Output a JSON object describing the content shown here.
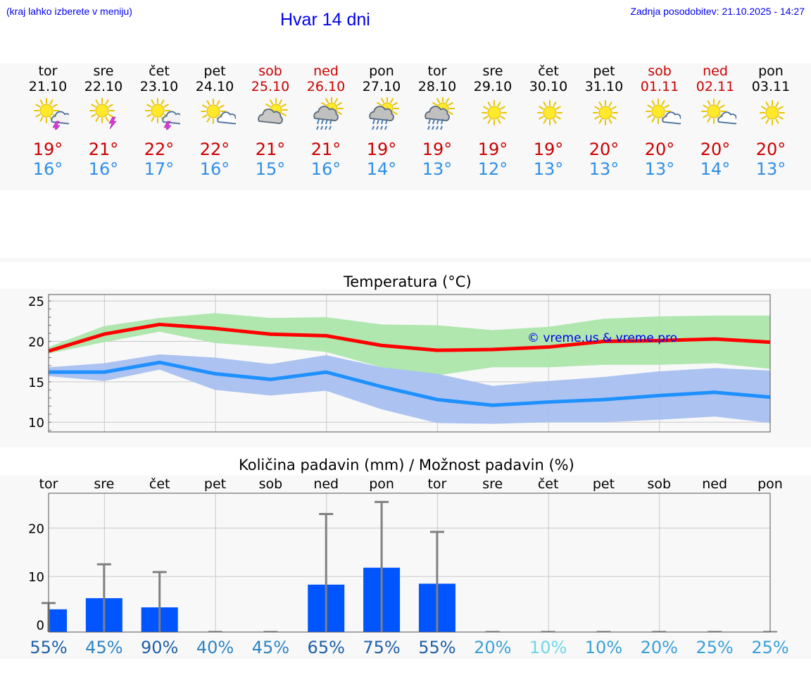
{
  "header": {
    "left_note": "(kraj lahko izberete v meniju)",
    "title": "Hvar 14 dni",
    "updated": "Zadnja posodobitev: 21.10.2025 - 14:27"
  },
  "days": [
    {
      "name": "tor",
      "date": "21.10",
      "weekend": false,
      "icon": "sun-cloud-thunder-icon",
      "tmax": "19°",
      "tmin": "16°"
    },
    {
      "name": "sre",
      "date": "22.10",
      "weekend": false,
      "icon": "sun-thunder-icon",
      "tmax": "21°",
      "tmin": "16°"
    },
    {
      "name": "čet",
      "date": "23.10",
      "weekend": false,
      "icon": "sun-cloud-thunder-icon",
      "tmax": "22°",
      "tmin": "17°"
    },
    {
      "name": "pet",
      "date": "24.10",
      "weekend": false,
      "icon": "sun-cloud-icon",
      "tmax": "22°",
      "tmin": "16°"
    },
    {
      "name": "sob",
      "date": "25.10",
      "weekend": true,
      "icon": "cloud-sun-icon",
      "tmax": "21°",
      "tmin": "15°"
    },
    {
      "name": "ned",
      "date": "26.10",
      "weekend": true,
      "icon": "sun-cloud-rain-icon",
      "tmax": "21°",
      "tmin": "16°"
    },
    {
      "name": "pon",
      "date": "27.10",
      "weekend": false,
      "icon": "sun-cloud-rain-icon",
      "tmax": "19°",
      "tmin": "14°"
    },
    {
      "name": "tor",
      "date": "28.10",
      "weekend": false,
      "icon": "sun-cloud-rain-icon",
      "tmax": "19°",
      "tmin": "13°"
    },
    {
      "name": "sre",
      "date": "29.10",
      "weekend": false,
      "icon": "sun-icon",
      "tmax": "19°",
      "tmin": "12°"
    },
    {
      "name": "čet",
      "date": "30.10",
      "weekend": false,
      "icon": "sun-icon",
      "tmax": "19°",
      "tmin": "13°"
    },
    {
      "name": "pet",
      "date": "31.10",
      "weekend": false,
      "icon": "sun-icon",
      "tmax": "20°",
      "tmin": "13°"
    },
    {
      "name": "sob",
      "date": "01.11",
      "weekend": true,
      "icon": "sun-cloud-icon",
      "tmax": "20°",
      "tmin": "13°"
    },
    {
      "name": "ned",
      "date": "02.11",
      "weekend": true,
      "icon": "sun-cloud-icon",
      "tmax": "20°",
      "tmin": "14°"
    },
    {
      "name": "pon",
      "date": "03.11",
      "weekend": false,
      "icon": "sun-icon",
      "tmax": "20°",
      "tmin": "13°"
    }
  ],
  "colors": {
    "max_temp": "#cc0000",
    "min_temp": "#2e8fe8",
    "max_line": "#ff0000",
    "min_line": "#1e90ff",
    "max_band": "#abe6aa",
    "min_band": "#a8c0f0",
    "rain_bar": "#0055ff",
    "error_bar": "#808080",
    "watermark": "#0000ee",
    "weekend": "#cc0000"
  },
  "chart_data": [
    {
      "type": "line",
      "title": "Temperatura (°C)",
      "x": [
        "tor",
        "sre",
        "čet",
        "pet",
        "sob",
        "ned",
        "pon",
        "tor",
        "sre",
        "čet",
        "pet",
        "sob",
        "ned",
        "pon"
      ],
      "yticks": [
        10,
        15,
        20,
        25
      ],
      "ylim": [
        8.8,
        25.8
      ],
      "grid": true,
      "annotation": "© vreme.us & vreme.pro",
      "series": [
        {
          "values": [
            18.8,
            20.9,
            22.1,
            21.6,
            20.9,
            20.7,
            19.5,
            18.9,
            19.0,
            19.3,
            20.0,
            20.1,
            20.3,
            19.9
          ]
        },
        {
          "values": [
            16.2,
            16.2,
            17.4,
            16.0,
            15.3,
            16.2,
            14.4,
            12.8,
            12.1,
            12.5,
            12.8,
            13.3,
            13.7,
            13.1
          ]
        }
      ],
      "bands": [
        {
          "low": [
            18.5,
            19.9,
            21.2,
            19.8,
            19.3,
            18.7,
            16.8,
            15.8,
            16.8,
            16.8,
            17.1,
            17.1,
            17.3,
            16.6
          ],
          "high": [
            19.3,
            21.9,
            22.9,
            23.5,
            22.9,
            23.0,
            22.1,
            22.0,
            21.4,
            21.8,
            22.8,
            23.1,
            23.2,
            23.2
          ]
        },
        {
          "low": [
            15.7,
            15.1,
            16.5,
            14.0,
            13.3,
            13.9,
            11.6,
            9.9,
            9.8,
            10.0,
            10.0,
            10.3,
            10.7,
            9.9
          ],
          "high": [
            16.8,
            17.3,
            18.4,
            18.0,
            17.2,
            18.3,
            16.8,
            16.0,
            14.5,
            15.1,
            15.6,
            16.3,
            16.7,
            16.4
          ]
        }
      ]
    },
    {
      "type": "bar",
      "title": "Količina padavin (mm) / Možnost padavin (%)",
      "categories": [
        "tor",
        "sre",
        "čet",
        "pet",
        "sob",
        "ned",
        "pon",
        "tor",
        "sre",
        "čet",
        "pet",
        "sob",
        "ned",
        "pon"
      ],
      "values": [
        3.2,
        5.5,
        3.6,
        0,
        0,
        8.3,
        11.8,
        8.5,
        0,
        0,
        0,
        0,
        0,
        0
      ],
      "error_high": [
        4.5,
        12.5,
        10.9,
        0,
        0,
        22.9,
        25.4,
        19.2,
        0,
        0,
        0,
        0,
        0,
        0
      ],
      "yticks": [
        0,
        10,
        20
      ],
      "ylim": [
        -1.5,
        27.2
      ],
      "grid": true,
      "probability": [
        {
          "label": "55%",
          "color": "#1f5fa8"
        },
        {
          "label": "45%",
          "color": "#2c84c4"
        },
        {
          "label": "90%",
          "color": "#1f5fa8"
        },
        {
          "label": "40%",
          "color": "#2c84c4"
        },
        {
          "label": "45%",
          "color": "#2c84c4"
        },
        {
          "label": "65%",
          "color": "#1f5fa8"
        },
        {
          "label": "75%",
          "color": "#1f5fa8"
        },
        {
          "label": "55%",
          "color": "#1f5fa8"
        },
        {
          "label": "20%",
          "color": "#3aa0d8"
        },
        {
          "label": "10%",
          "color": "#6fd6e6"
        },
        {
          "label": "10%",
          "color": "#3aa0d8"
        },
        {
          "label": "20%",
          "color": "#3aa0d8"
        },
        {
          "label": "25%",
          "color": "#3aa0d8"
        },
        {
          "label": "25%",
          "color": "#3aa0d8"
        }
      ]
    }
  ]
}
